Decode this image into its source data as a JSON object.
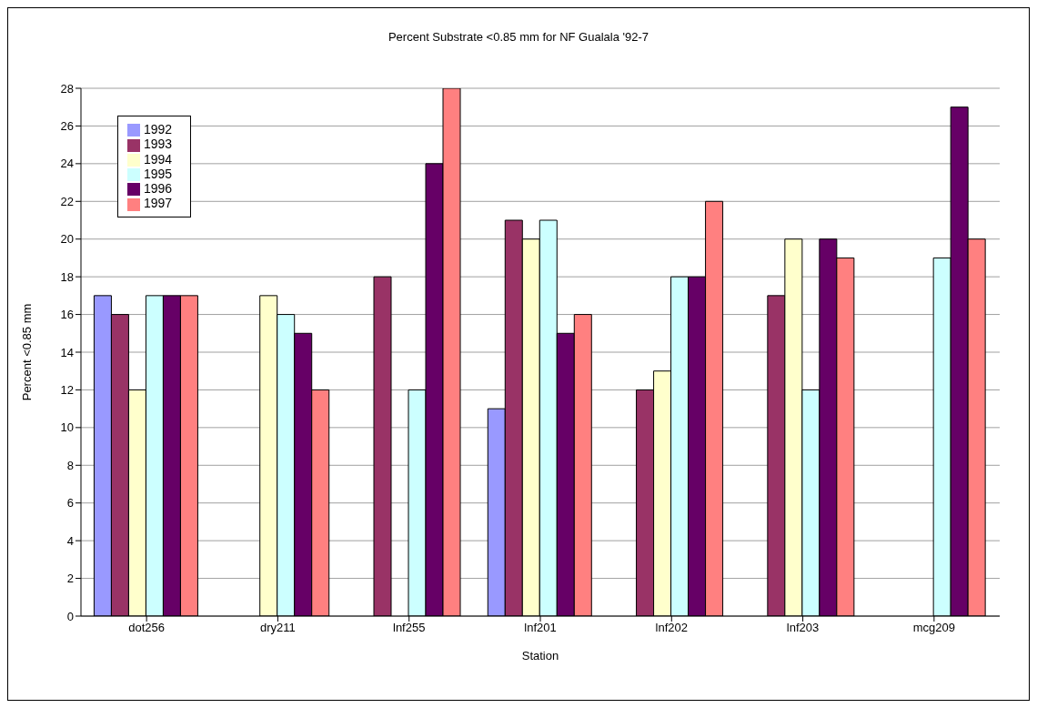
{
  "chart_data": {
    "type": "bar",
    "title": "Percent Substrate <0.85 mm for NF Gualala '92-7",
    "xlabel": "Station",
    "ylabel": "Percent <0.85 mm",
    "categories": [
      "dot256",
      "dry211",
      "lnf255",
      "lnf201",
      "lnf202",
      "lnf203",
      "mcg209"
    ],
    "series": [
      {
        "name": "1992",
        "color": "#9999ff",
        "values": [
          17,
          null,
          null,
          11,
          null,
          null,
          null
        ]
      },
      {
        "name": "1993",
        "color": "#993366",
        "values": [
          16,
          null,
          18,
          21,
          12,
          17,
          null
        ]
      },
      {
        "name": "1994",
        "color": "#ffffcc",
        "values": [
          12,
          17,
          null,
          20,
          13,
          20,
          null
        ]
      },
      {
        "name": "1995",
        "color": "#ccffff",
        "values": [
          17,
          16,
          12,
          21,
          18,
          12,
          19
        ]
      },
      {
        "name": "1996",
        "color": "#660066",
        "values": [
          17,
          15,
          24,
          15,
          18,
          20,
          27
        ]
      },
      {
        "name": "1997",
        "color": "#ff8080",
        "values": [
          17,
          12,
          28,
          16,
          22,
          19,
          20
        ]
      }
    ],
    "ylim": [
      0,
      28
    ],
    "yticks": [
      0,
      2,
      4,
      6,
      8,
      10,
      12,
      14,
      16,
      18,
      20,
      22,
      24,
      26,
      28
    ],
    "grid": "y",
    "legend": "top left"
  }
}
